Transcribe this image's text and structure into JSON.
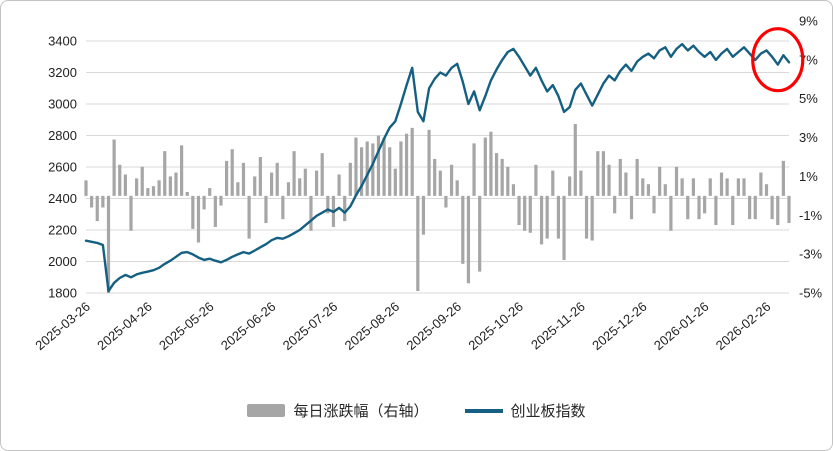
{
  "panel": {
    "background": "#ffffff",
    "border_color": "#c3c3c3"
  },
  "chart_data": {
    "type": "combo",
    "title": "",
    "grid": true,
    "legend_position": "bottom",
    "x_tick_labels": [
      "2025-03-26",
      "2025-04-26",
      "2025-05-26",
      "2025-06-26",
      "2025-07-26",
      "2025-08-26",
      "2025-09-26",
      "2025-10-26",
      "2025-11-26",
      "2025-12-26",
      "2026-01-26",
      "2026-02-26"
    ],
    "x_tick_indices": [
      0,
      11,
      22,
      33,
      44,
      55,
      66,
      77,
      88,
      99,
      110,
      121
    ],
    "left_axis": {
      "label": "",
      "min": 1800,
      "max": 3400,
      "step": 200,
      "tick_labels": [
        "3400",
        "3200",
        "3000",
        "2800",
        "2600",
        "2400",
        "2200",
        "2000",
        "1800"
      ]
    },
    "right_axis": {
      "label": "",
      "min": -5,
      "max": 9,
      "step": 2,
      "tick_labels": [
        "9%",
        "7%",
        "5%",
        "3%",
        "1%",
        "-1%",
        "-3%",
        "-5%"
      ]
    },
    "series": [
      {
        "name": "创业板指数",
        "type": "line",
        "axis": "left",
        "color": "#156082",
        "values": [
          2132,
          2125,
          2118,
          2105,
          1812,
          1865,
          1895,
          1915,
          1900,
          1918,
          1928,
          1936,
          1945,
          1960,
          1985,
          2005,
          2030,
          2055,
          2060,
          2045,
          2025,
          2010,
          2018,
          2005,
          1995,
          2010,
          2030,
          2045,
          2060,
          2050,
          2070,
          2090,
          2110,
          2135,
          2150,
          2145,
          2160,
          2180,
          2200,
          2230,
          2260,
          2290,
          2310,
          2330,
          2315,
          2340,
          2310,
          2350,
          2420,
          2480,
          2550,
          2620,
          2700,
          2780,
          2850,
          2890,
          3000,
          3120,
          3230,
          2950,
          2890,
          3100,
          3160,
          3200,
          3180,
          3230,
          3255,
          3140,
          3000,
          3080,
          2960,
          3050,
          3150,
          3220,
          3280,
          3330,
          3350,
          3300,
          3240,
          3180,
          3230,
          3150,
          3080,
          3120,
          3050,
          2950,
          2980,
          3090,
          3130,
          3060,
          2990,
          3060,
          3130,
          3180,
          3150,
          3210,
          3250,
          3210,
          3270,
          3300,
          3320,
          3290,
          3340,
          3360,
          3300,
          3350,
          3380,
          3340,
          3370,
          3330,
          3300,
          3330,
          3280,
          3320,
          3350,
          3300,
          3330,
          3360,
          3320,
          3280,
          3320,
          3340,
          3300,
          3250,
          3310,
          3265
        ]
      },
      {
        "name": "每日涨跌幅（右轴）",
        "type": "bar",
        "axis": "right",
        "color": "#a6a6a6",
        "values": [
          0.8,
          -0.6,
          -1.3,
          -0.6,
          -5.0,
          2.9,
          1.6,
          1.1,
          -1.8,
          0.9,
          1.5,
          0.4,
          0.5,
          0.8,
          2.3,
          1.0,
          1.2,
          2.6,
          0.2,
          -1.7,
          -2.4,
          -0.7,
          0.4,
          -1.6,
          -0.5,
          1.8,
          2.4,
          0.7,
          1.7,
          -2.2,
          1.0,
          2.0,
          -1.4,
          1.2,
          1.7,
          -1.2,
          0.7,
          2.3,
          0.9,
          1.4,
          -1.8,
          1.3,
          2.2,
          -0.9,
          -1.6,
          1.1,
          -1.3,
          1.7,
          3.0,
          2.5,
          2.8,
          2.7,
          3.1,
          3.0,
          2.5,
          1.4,
          2.8,
          3.2,
          3.5,
          -4.9,
          -2.0,
          3.4,
          1.9,
          1.3,
          -0.6,
          1.6,
          0.8,
          -3.5,
          -4.5,
          2.7,
          -3.9,
          3.0,
          3.3,
          2.2,
          1.9,
          1.5,
          0.6,
          -1.5,
          -1.8,
          -1.9,
          1.6,
          -2.5,
          -2.2,
          1.3,
          -2.2,
          -3.3,
          1.0,
          3.7,
          1.3,
          -2.2,
          -2.3,
          2.3,
          2.3,
          1.6,
          -0.9,
          1.9,
          1.2,
          -1.2,
          1.9,
          0.9,
          0.6,
          -0.9,
          1.5,
          0.6,
          -1.8,
          1.5,
          0.9,
          -1.2,
          0.9,
          -1.2,
          -0.9,
          0.9,
          -1.5,
          1.2,
          0.9,
          -1.5,
          0.9,
          0.9,
          -1.2,
          -1.2,
          1.2,
          0.6,
          -1.2,
          -1.5,
          1.8,
          -1.4
        ]
      }
    ],
    "annotation": {
      "shape": "ellipse",
      "stroke_color": "#FF0000",
      "highlights": "latest line values"
    }
  }
}
